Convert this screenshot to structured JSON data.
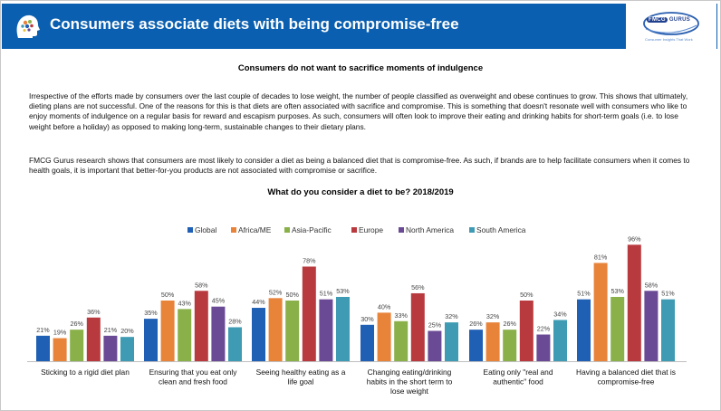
{
  "header": {
    "title": "Consumers associate diets with being compromise-free",
    "logo": {
      "brand_left": "FMCG",
      "brand_right": "GURUS",
      "tagline": "Consumer Insights That Work"
    }
  },
  "subtitle": "Consumers do not want to sacrifice moments of indulgence",
  "paragraphs": [
    "Irrespective of the efforts made by consumers over the last couple of decades to lose weight, the number of people classified as overweight and obese continues to grow. This shows that ultimately, dieting plans are not successful. One of the reasons for this is that diets are often associated with sacrifice and compromise. This is something that doesn't resonate well with consumers who like to enjoy moments of indulgence on a regular basis for reward and escapism purposes. As such, consumers will often look to improve their eating and drinking habits for short-term goals (i.e. to lose weight before a holiday) as opposed to making long-term, sustainable changes to their dietary plans.",
    "FMCG Gurus research shows that consumers are most likely to consider a diet as being a balanced diet that is compromise-free. As such, if brands are to help facilitate consumers when it comes to health goals, it is important that better-for-you products are not associated with compromise or sacrifice."
  ],
  "chart_data": {
    "type": "bar",
    "title": "What do you consider a diet to be? 2018/2019",
    "legend_position": "top",
    "categories": [
      [
        "Sticking to a rigid diet plan"
      ],
      [
        "Ensuring that you eat only",
        "clean and fresh food"
      ],
      [
        "Seeing healthy eating as a",
        "life goal"
      ],
      [
        "Changing eating/drinking",
        "habits in the short term to",
        "lose weight"
      ],
      [
        "Eating only \"real and",
        "authentic\" food"
      ],
      [
        "Having a balanced diet that is",
        "compromise-free"
      ]
    ],
    "series": [
      {
        "name": "Global",
        "color": "#1f5fb4",
        "values": [
          21,
          35,
          44,
          30,
          26,
          51
        ]
      },
      {
        "name": "Africa/ME",
        "color": "#e8833a",
        "values": [
          19,
          50,
          52,
          40,
          32,
          81
        ]
      },
      {
        "name": "Asia-Pacific",
        "color": "#8ab04a",
        "values": [
          26,
          43,
          50,
          33,
          26,
          53
        ]
      },
      {
        "name": "Europe",
        "color": "#b83a3e",
        "values": [
          36,
          58,
          78,
          56,
          50,
          96
        ]
      },
      {
        "name": "North America",
        "color": "#6a4a95",
        "values": [
          21,
          45,
          51,
          25,
          22,
          58
        ]
      },
      {
        "name": "South America",
        "color": "#3e9bb3",
        "values": [
          20,
          28,
          53,
          32,
          34,
          51
        ]
      }
    ],
    "value_suffix": "%",
    "ylim": [
      0,
      100
    ],
    "grid": false
  }
}
